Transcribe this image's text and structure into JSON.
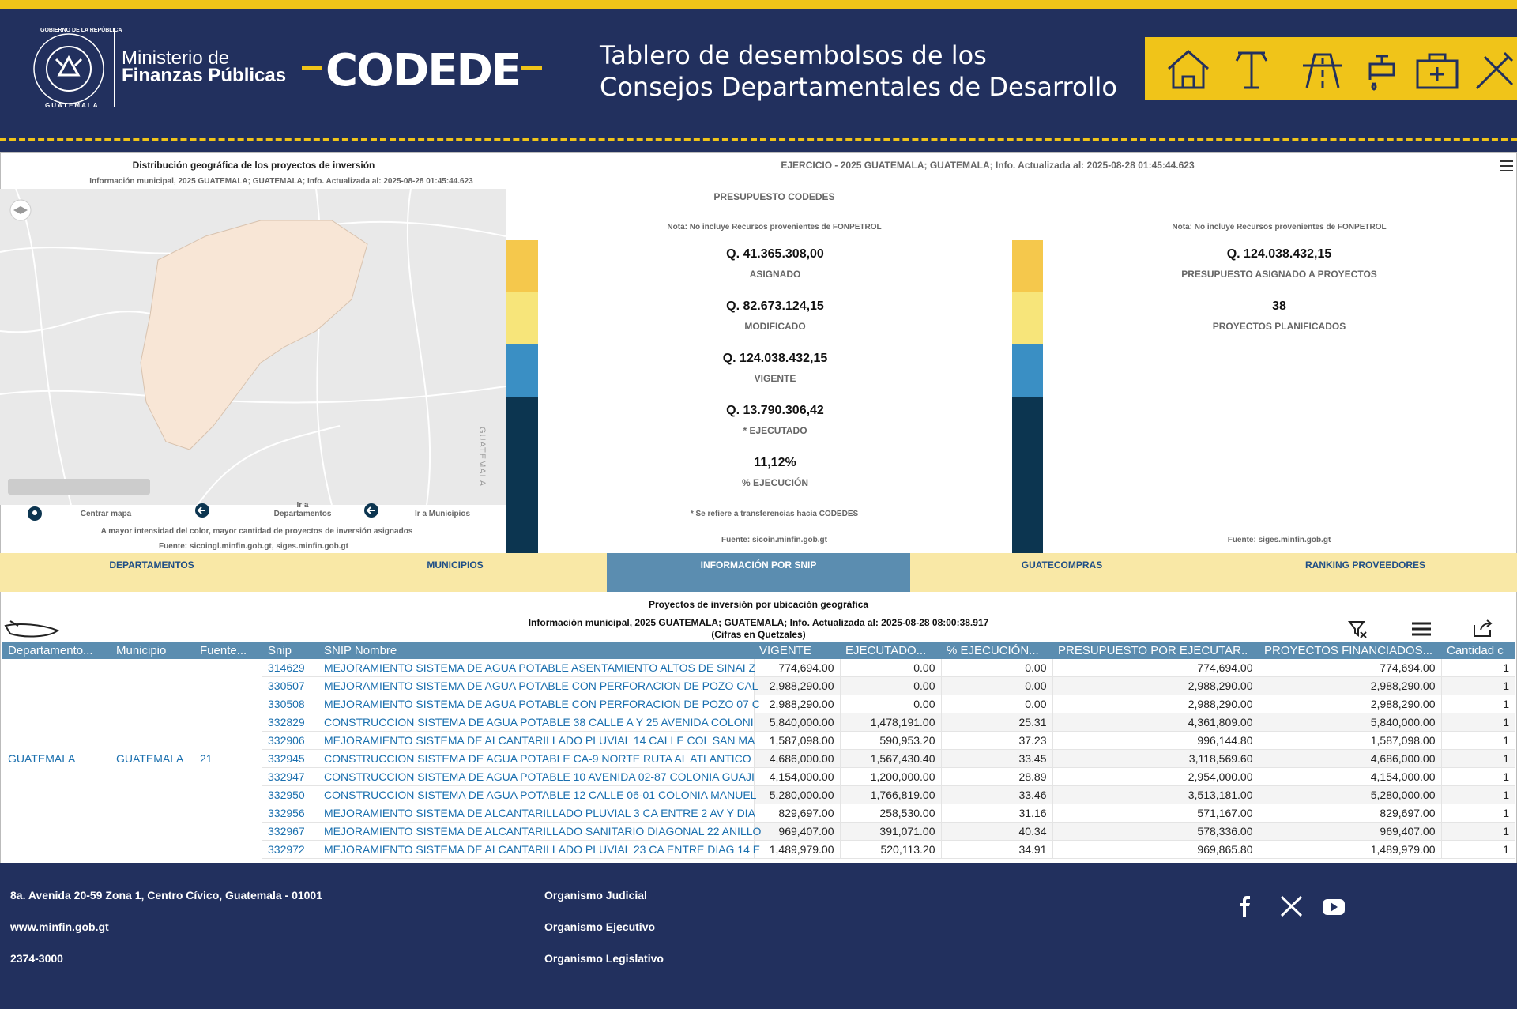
{
  "header": {
    "emblem_top": "GOBIERNO DE LA REPÚBLICA",
    "emblem_bottom": "GUATEMALA",
    "ministry_line1": "Ministerio de",
    "ministry_line2": "Finanzas Públicas",
    "logo_text": "CODEDE",
    "title_line1": "Tablero de desembolsos de los",
    "title_line2": "Consejos Departamentales de Desarrollo"
  },
  "map_panel": {
    "title": "Distribución geográfica de los proyectos de inversión",
    "subtitle": "Información municipal, 2025 GUATEMALA; GUATEMALA; Info. Actualizada al: 2025-08-28 01:45:44.623",
    "map_label": "GUATEMALA",
    "controls": [
      "Centrar mapa",
      "Ir a Departamentos",
      "Ir a Municipios"
    ],
    "note": "A mayor intensidad del color, mayor cantidad de proyectos de inversión asignados",
    "source": "Fuente: sicoingl.minfin.gob.gt, siges.minfin.gob.gt"
  },
  "budget_panel": {
    "header": "EJERCICIO - 2025 GUATEMALA; GUATEMALA; Info. Actualizada al: 2025-08-28 01:45:44.623",
    "title": "PRESUPUESTO CODEDES",
    "note": "Nota: No incluye Recursos provenientes de FONPETROL",
    "items": [
      {
        "value": "Q. 41.365.308,00",
        "label": "ASIGNADO"
      },
      {
        "value": "Q. 82.673.124,15",
        "label": "MODIFICADO"
      },
      {
        "value": "Q. 124.038.432,15",
        "label": "VIGENTE"
      },
      {
        "value": "Q. 13.790.306,42",
        "label": "* EJECUTADO"
      },
      {
        "value": "11,12%",
        "label": "% EJECUCIÓN"
      }
    ],
    "footnote": "* Se refiere a transferencias hacia CODEDES",
    "source": "Fuente: sicoin.minfin.gob.gt"
  },
  "projects_panel": {
    "note": "Nota: No incluye Recursos provenientes de FONPETROL",
    "items": [
      {
        "value": "Q. 124.038.432,15",
        "label": "PRESUPUESTO ASIGNADO A PROYECTOS"
      },
      {
        "value": "38",
        "label": "PROYECTOS PLANIFICADOS"
      }
    ],
    "source": "Fuente: siges.minfin.gob.gt"
  },
  "tabs": [
    "DEPARTAMENTOS",
    "MUNICIPIOS",
    "INFORMACIÓN POR SNIP",
    "GUATECOMPRAS",
    "RANKING PROVEEDORES"
  ],
  "active_tab": 2,
  "table": {
    "title": "Proyectos de inversión por ubicación geográfica",
    "subtitle": "Información municipal, 2025 GUATEMALA; GUATEMALA; Info. Actualizada al: 2025-08-28 08:00:38.917",
    "units": "(Cifras en Quetzales)",
    "columns": [
      "Departamento...",
      "Municipio",
      "Fuente...",
      "Snip",
      "SNIP Nombre",
      "VIGENTE",
      "EJECUTADO...",
      "% EJECUCIÓN...",
      "PRESUPUESTO POR EJECUTAR..",
      "PROYECTOS FINANCIADOS...",
      "Cantidad c"
    ],
    "group": [
      "GUATEMALA",
      "GUATEMALA",
      "21"
    ],
    "rows": [
      [
        "314629",
        "MEJORAMIENTO SISTEMA DE AGUA POTABLE ASENTAMIENTO ALTOS DE SINAI Z",
        "774,694.00",
        "0.00",
        "0.00",
        "774,694.00",
        "774,694.00",
        "1"
      ],
      [
        "330507",
        "MEJORAMIENTO SISTEMA DE AGUA POTABLE CON PERFORACION DE POZO CAL",
        "2,988,290.00",
        "0.00",
        "0.00",
        "2,988,290.00",
        "2,988,290.00",
        "1"
      ],
      [
        "330508",
        "MEJORAMIENTO SISTEMA DE AGUA POTABLE CON PERFORACION DE POZO 07 C",
        "2,988,290.00",
        "0.00",
        "0.00",
        "2,988,290.00",
        "2,988,290.00",
        "1"
      ],
      [
        "332829",
        "CONSTRUCCION SISTEMA DE AGUA POTABLE 38 CALLE A Y 25 AVENIDA COLONI",
        "5,840,000.00",
        "1,478,191.00",
        "25.31",
        "4,361,809.00",
        "5,840,000.00",
        "1"
      ],
      [
        "332906",
        "MEJORAMIENTO SISTEMA DE ALCANTARILLADO PLUVIAL 14 CALLE COL SAN MA",
        "1,587,098.00",
        "590,953.20",
        "37.23",
        "996,144.80",
        "1,587,098.00",
        "1"
      ],
      [
        "332945",
        "CONSTRUCCION SISTEMA DE AGUA POTABLE CA-9 NORTE RUTA AL ATLANTICO",
        "4,686,000.00",
        "1,567,430.40",
        "33.45",
        "3,118,569.60",
        "4,686,000.00",
        "1"
      ],
      [
        "332947",
        "CONSTRUCCION SISTEMA DE AGUA POTABLE 10 AVENIDA 02-87 COLONIA GUAJI",
        "4,154,000.00",
        "1,200,000.00",
        "28.89",
        "2,954,000.00",
        "4,154,000.00",
        "1"
      ],
      [
        "332950",
        "CONSTRUCCION SISTEMA DE AGUA POTABLE 12 CALLE 06-01 COLONIA MANUEL",
        "5,280,000.00",
        "1,766,819.00",
        "33.46",
        "3,513,181.00",
        "5,280,000.00",
        "1"
      ],
      [
        "332956",
        "MEJORAMIENTO SISTEMA DE ALCANTARILLADO PLUVIAL 3 CA ENTRE 2 AV Y DIA",
        "829,697.00",
        "258,530.00",
        "31.16",
        "571,167.00",
        "829,697.00",
        "1"
      ],
      [
        "332967",
        "MEJORAMIENTO SISTEMA DE ALCANTARILLADO SANITARIO DIAGONAL 22 ANILLO",
        "969,407.00",
        "391,071.00",
        "40.34",
        "578,336.00",
        "969,407.00",
        "1"
      ],
      [
        "332972",
        "MEJORAMIENTO SISTEMA DE ALCANTARILLADO PLUVIAL 23 CA ENTRE DIAG 14 E",
        "1,489,979.00",
        "520,113.20",
        "34.91",
        "969,865.80",
        "1,489,979.00",
        "1"
      ]
    ]
  },
  "footer": {
    "address": "8a. Avenida 20-59 Zona 1, Centro Cívico, Guatemala - 01001",
    "website": "www.minfin.gob.gt",
    "phone": "2374-3000",
    "links": [
      "Organismo Judicial",
      "Organismo Ejecutivo",
      "Organismo Legislativo"
    ]
  }
}
